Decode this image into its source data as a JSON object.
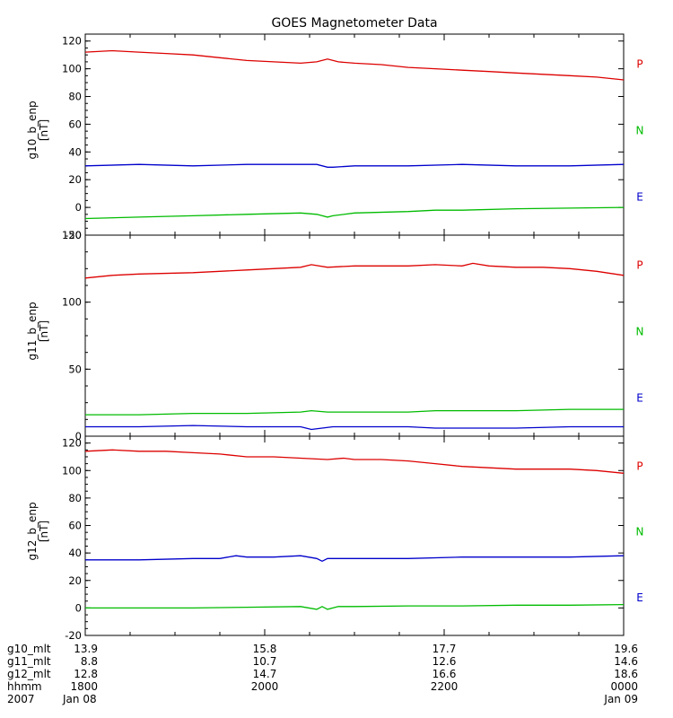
{
  "title": "GOES Magnetometer Data",
  "chart_data": [
    {
      "type": "line",
      "ylabel": "g10_b_enp",
      "yunit": "[nT]",
      "ylim": [
        -20,
        125
      ],
      "yticks": [
        -20,
        0,
        20,
        40,
        60,
        80,
        100,
        120
      ],
      "legend": [
        {
          "name": "P",
          "color": "#dd0000"
        },
        {
          "name": "N",
          "color": "#00bb00"
        },
        {
          "name": "E",
          "color": "#0000cc"
        }
      ],
      "series": [
        {
          "name": "P",
          "color": "#dd0000",
          "x": [
            0,
            0.05,
            0.1,
            0.15,
            0.2,
            0.25,
            0.3,
            0.35,
            0.4,
            0.43,
            0.45,
            0.47,
            0.5,
            0.55,
            0.6,
            0.65,
            0.7,
            0.75,
            0.8,
            0.85,
            0.9,
            0.95,
            1
          ],
          "values": [
            112,
            113,
            112,
            111,
            110,
            108,
            106,
            105,
            104,
            105,
            107,
            105,
            104,
            103,
            101,
            100,
            99,
            98,
            97,
            96,
            95,
            94,
            92
          ]
        },
        {
          "name": "N",
          "color": "#00bb00",
          "x": [
            0,
            0.1,
            0.2,
            0.3,
            0.4,
            0.43,
            0.45,
            0.46,
            0.5,
            0.6,
            0.65,
            0.7,
            0.8,
            0.9,
            1
          ],
          "values": [
            -8,
            -7,
            -6,
            -5,
            -4,
            -5,
            -7,
            -6,
            -4,
            -3,
            -2,
            -2,
            -1,
            -0.5,
            0
          ]
        },
        {
          "name": "E",
          "color": "#0000cc",
          "x": [
            0,
            0.1,
            0.2,
            0.3,
            0.4,
            0.43,
            0.45,
            0.46,
            0.5,
            0.6,
            0.7,
            0.8,
            0.9,
            1
          ],
          "values": [
            30,
            31,
            30,
            31,
            31,
            31,
            29,
            29,
            30,
            30,
            31,
            30,
            30,
            31
          ]
        }
      ]
    },
    {
      "type": "line",
      "ylabel": "g11_b_enp",
      "yunit": "[nT]",
      "ylim": [
        0,
        150
      ],
      "yticks": [
        0,
        50,
        100,
        150
      ],
      "legend": [
        {
          "name": "P",
          "color": "#dd0000"
        },
        {
          "name": "N",
          "color": "#00bb00"
        },
        {
          "name": "E",
          "color": "#0000cc"
        }
      ],
      "series": [
        {
          "name": "P",
          "color": "#dd0000",
          "x": [
            0,
            0.05,
            0.1,
            0.2,
            0.3,
            0.35,
            0.4,
            0.42,
            0.45,
            0.5,
            0.6,
            0.65,
            0.7,
            0.72,
            0.75,
            0.8,
            0.85,
            0.9,
            0.95,
            1
          ],
          "values": [
            118,
            120,
            121,
            122,
            124,
            125,
            126,
            128,
            126,
            127,
            127,
            128,
            127,
            129,
            127,
            126,
            126,
            125,
            123,
            120
          ]
        },
        {
          "name": "N",
          "color": "#00bb00",
          "x": [
            0,
            0.1,
            0.2,
            0.3,
            0.4,
            0.42,
            0.45,
            0.5,
            0.6,
            0.65,
            0.7,
            0.8,
            0.9,
            1
          ],
          "values": [
            16,
            16,
            17,
            17,
            18,
            19,
            18,
            18,
            18,
            19,
            19,
            19,
            20,
            20
          ]
        },
        {
          "name": "E",
          "color": "#0000cc",
          "x": [
            0,
            0.1,
            0.2,
            0.3,
            0.4,
            0.42,
            0.44,
            0.46,
            0.5,
            0.6,
            0.65,
            0.7,
            0.8,
            0.9,
            1
          ],
          "values": [
            7,
            7,
            8,
            7,
            7,
            5,
            6,
            7,
            7,
            7,
            6,
            6,
            6,
            7,
            7
          ]
        }
      ]
    },
    {
      "type": "line",
      "ylabel": "g12_b_enp",
      "yunit": "[nT]",
      "ylim": [
        -20,
        125
      ],
      "yticks": [
        -20,
        0,
        20,
        40,
        60,
        80,
        100,
        120
      ],
      "legend": [
        {
          "name": "P",
          "color": "#dd0000"
        },
        {
          "name": "N",
          "color": "#00bb00"
        },
        {
          "name": "E",
          "color": "#0000cc"
        }
      ],
      "series": [
        {
          "name": "P",
          "color": "#dd0000",
          "x": [
            0,
            0.05,
            0.1,
            0.15,
            0.2,
            0.25,
            0.3,
            0.35,
            0.4,
            0.45,
            0.48,
            0.5,
            0.55,
            0.6,
            0.65,
            0.7,
            0.75,
            0.8,
            0.85,
            0.9,
            0.95,
            1
          ],
          "values": [
            114,
            115,
            114,
            114,
            113,
            112,
            110,
            110,
            109,
            108,
            109,
            108,
            108,
            107,
            105,
            103,
            102,
            101,
            101,
            101,
            100,
            98
          ]
        },
        {
          "name": "N",
          "color": "#00bb00",
          "x": [
            0,
            0.1,
            0.2,
            0.3,
            0.4,
            0.43,
            0.44,
            0.45,
            0.47,
            0.5,
            0.6,
            0.7,
            0.8,
            0.9,
            1
          ],
          "values": [
            0,
            0,
            0,
            0.5,
            1,
            -1,
            1,
            -1,
            1,
            1,
            1.5,
            1.5,
            2,
            2,
            2.5
          ]
        },
        {
          "name": "E",
          "color": "#0000cc",
          "x": [
            0,
            0.05,
            0.1,
            0.2,
            0.25,
            0.28,
            0.3,
            0.35,
            0.4,
            0.43,
            0.44,
            0.45,
            0.47,
            0.5,
            0.6,
            0.7,
            0.8,
            0.9,
            1
          ],
          "values": [
            35,
            35,
            35,
            36,
            36,
            38,
            37,
            37,
            38,
            36,
            34,
            36,
            36,
            36,
            36,
            37,
            37,
            37,
            38
          ]
        }
      ]
    }
  ],
  "x_axis": {
    "tick_positions": [
      0,
      0.333,
      0.667,
      1
    ],
    "rows": [
      {
        "label": "g10_mlt",
        "values": [
          "13.9",
          "15.8",
          "17.7",
          "19.6"
        ]
      },
      {
        "label": "g11_mlt",
        "values": [
          "8.8",
          "10.7",
          "12.6",
          "14.6"
        ]
      },
      {
        "label": "g12_mlt",
        "values": [
          "12.8",
          "14.7",
          "16.6",
          "18.6"
        ]
      },
      {
        "label": "hhmm",
        "values": [
          "1800",
          "2000",
          "2200",
          "0000"
        ]
      }
    ],
    "date_row": {
      "label": "2007",
      "start": "Jan 08",
      "end": "Jan 09"
    }
  }
}
